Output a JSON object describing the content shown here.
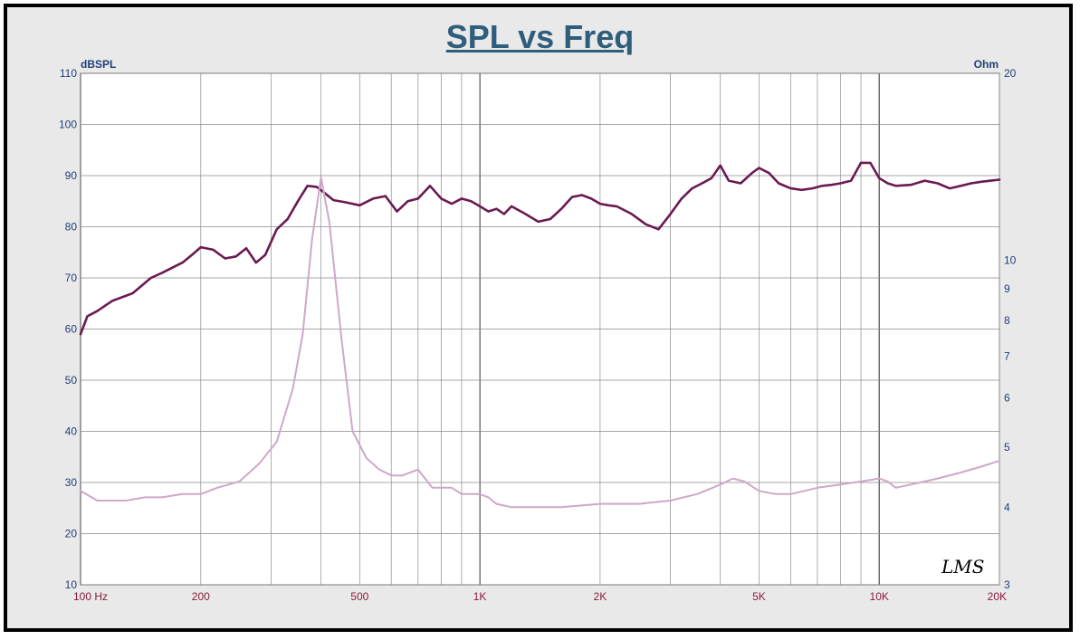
{
  "chart_data": {
    "type": "line",
    "title": "SPL vs Freq",
    "ylabel": "dBSPL",
    "y2label": "Ohm",
    "xscale": "log",
    "xlim": [
      100,
      20000
    ],
    "ylim": [
      10,
      110
    ],
    "y2lim": [
      3,
      20
    ],
    "y2scale": "log",
    "grid": true,
    "x_tick_values": [
      100,
      200,
      500,
      1000,
      2000,
      5000,
      10000,
      20000
    ],
    "x_tick_labels": [
      "100  Hz",
      "200",
      "500",
      "1K",
      "2K",
      "5K",
      "10K",
      "20K"
    ],
    "y_tick_values": [
      110,
      100,
      90,
      80,
      70,
      60,
      50,
      40,
      30,
      20,
      10
    ],
    "y_tick_labels": [
      "110",
      "100",
      "90",
      "80",
      "70",
      "60",
      "50",
      "40",
      "30",
      "20",
      "10"
    ],
    "y2_tick_values": [
      20,
      10,
      9,
      8,
      7,
      6,
      5,
      4,
      3
    ],
    "y2_tick_labels": [
      "20",
      "10",
      "9",
      "8",
      "7",
      "6",
      "5",
      "4",
      "3"
    ],
    "signature": "LMS",
    "series": [
      {
        "axis": "left",
        "color": "#6b1a52",
        "x": [
          100,
          104,
          110,
          120,
          135,
          150,
          160,
          180,
          190,
          200,
          215,
          230,
          245,
          260,
          275,
          290,
          310,
          330,
          350,
          370,
          390,
          410,
          430,
          460,
          500,
          540,
          580,
          620,
          660,
          700,
          750,
          800,
          850,
          900,
          950,
          1000,
          1050,
          1100,
          1150,
          1200,
          1300,
          1400,
          1500,
          1600,
          1700,
          1800,
          1900,
          2000,
          2100,
          2200,
          2400,
          2600,
          2800,
          3000,
          3200,
          3400,
          3600,
          3800,
          4000,
          4200,
          4500,
          4800,
          5000,
          5300,
          5600,
          6000,
          6400,
          6800,
          7200,
          7600,
          8000,
          8500,
          9000,
          9500,
          10000,
          10500,
          11000,
          12000,
          13000,
          14000,
          15000,
          16000,
          17000,
          18000,
          19000,
          20000
        ],
        "y": [
          59,
          62.5,
          63.5,
          65.5,
          67,
          70,
          71,
          73,
          74.5,
          76,
          75.5,
          73.8,
          74.2,
          75.8,
          73,
          74.5,
          79.5,
          81.5,
          85,
          88,
          87.8,
          86.5,
          85.2,
          84.8,
          84.2,
          85.5,
          86,
          83,
          85,
          85.5,
          88,
          85.5,
          84.5,
          85.5,
          85,
          84,
          83,
          83.5,
          82.5,
          84,
          82.5,
          81,
          81.5,
          83.5,
          85.8,
          86.2,
          85.5,
          84.5,
          84.2,
          84,
          82.5,
          80.5,
          79.5,
          82.5,
          85.5,
          87.5,
          88.5,
          89.5,
          92,
          89,
          88.5,
          90.5,
          91.5,
          90.5,
          88.5,
          87.5,
          87.2,
          87.5,
          88,
          88.2,
          88.5,
          89,
          92.5,
          92.5,
          89.5,
          88.5,
          88,
          88.2,
          89,
          88.5,
          87.5,
          88,
          88.5,
          88.8,
          89,
          89.2
        ]
      },
      {
        "axis": "right",
        "color": "#cfa8c8",
        "x": [
          100,
          110,
          130,
          145,
          160,
          180,
          200,
          220,
          250,
          280,
          310,
          340,
          360,
          380,
          400,
          420,
          450,
          480,
          520,
          560,
          600,
          640,
          700,
          760,
          850,
          900,
          1000,
          1050,
          1100,
          1200,
          1400,
          1600,
          2000,
          2500,
          3000,
          3500,
          4000,
          4300,
          4600,
          5000,
          5500,
          6000,
          6500,
          7000,
          8000,
          9000,
          10000,
          10500,
          11000,
          12000,
          14000,
          16000,
          18000,
          20000
        ],
        "y": [
          4.25,
          4.1,
          4.1,
          4.15,
          4.15,
          4.2,
          4.2,
          4.3,
          4.4,
          4.7,
          5.1,
          6.2,
          7.6,
          10.8,
          13.6,
          11.5,
          7.5,
          5.3,
          4.8,
          4.6,
          4.5,
          4.5,
          4.6,
          4.3,
          4.3,
          4.2,
          4.2,
          4.15,
          4.05,
          4,
          4,
          4,
          4.05,
          4.05,
          4.1,
          4.2,
          4.35,
          4.45,
          4.4,
          4.25,
          4.2,
          4.2,
          4.25,
          4.3,
          4.35,
          4.4,
          4.45,
          4.4,
          4.3,
          4.35,
          4.45,
          4.55,
          4.65,
          4.75
        ]
      }
    ]
  }
}
